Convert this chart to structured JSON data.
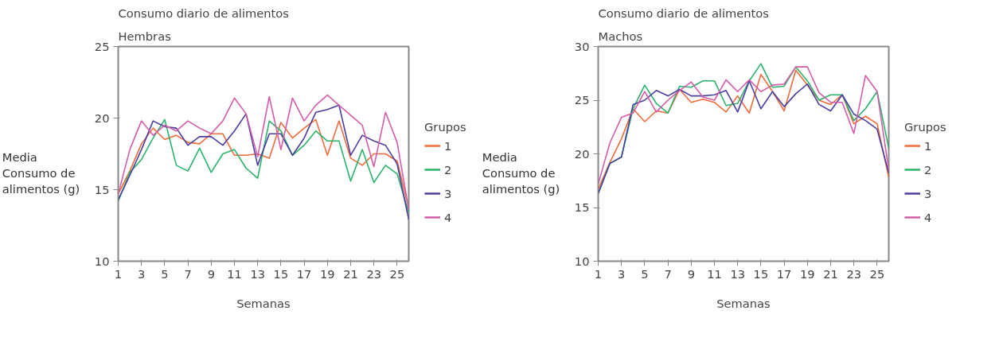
{
  "chart_data": [
    {
      "type": "line",
      "title": "Consumo diario de alimentos",
      "subtitle": "Hembras",
      "xlabel": "Semanas",
      "ylabel": "Media\nConsumo de\nalimentos (g)",
      "legend_title": "Grupos",
      "legend": "right",
      "grid": false,
      "line_style": "solid",
      "marker": "none",
      "x": [
        1,
        2,
        3,
        4,
        5,
        6,
        7,
        8,
        9,
        10,
        11,
        12,
        13,
        14,
        15,
        16,
        17,
        18,
        19,
        20,
        21,
        22,
        23,
        24,
        25,
        26
      ],
      "xlim": [
        1,
        26
      ],
      "xticks": [
        1,
        3,
        5,
        7,
        9,
        11,
        13,
        15,
        17,
        19,
        21,
        23,
        25
      ],
      "ylim": [
        10,
        25
      ],
      "yticks": [
        10,
        15,
        20,
        25
      ],
      "series": [
        {
          "name": "1",
          "color": "#f26b3a",
          "values": [
            14.7,
            16.3,
            18.2,
            19.3,
            18.5,
            18.8,
            18.3,
            18.2,
            18.9,
            18.9,
            17.4,
            17.4,
            17.5,
            17.2,
            19.7,
            18.6,
            19.3,
            19.9,
            17.4,
            19.8,
            17.2,
            16.7,
            17.5,
            17.5,
            17.0,
            13.7
          ]
        },
        {
          "name": "2",
          "color": "#2ab36b",
          "values": [
            14.2,
            16.2,
            17.1,
            18.6,
            19.9,
            16.7,
            16.3,
            17.9,
            16.2,
            17.5,
            17.8,
            16.5,
            15.8,
            19.8,
            19.1,
            17.4,
            18.1,
            19.1,
            18.4,
            18.4,
            15.6,
            17.8,
            15.5,
            16.7,
            16.1,
            13.4
          ]
        },
        {
          "name": "3",
          "color": "#4a3fa0",
          "values": [
            14.3,
            16.0,
            17.8,
            19.8,
            19.4,
            19.3,
            18.1,
            18.7,
            18.7,
            18.1,
            19.1,
            20.3,
            16.7,
            18.9,
            18.9,
            17.4,
            18.6,
            20.4,
            20.6,
            20.9,
            17.4,
            18.8,
            18.4,
            18.1,
            16.8,
            12.9
          ]
        },
        {
          "name": "4",
          "color": "#d45ca8",
          "values": [
            14.7,
            17.8,
            19.8,
            18.8,
            19.5,
            19.1,
            19.8,
            19.3,
            18.9,
            19.8,
            21.4,
            20.3,
            17.3,
            21.5,
            17.8,
            21.4,
            19.8,
            20.9,
            21.6,
            20.9,
            20.2,
            19.5,
            16.6,
            20.4,
            18.3,
            13.6
          ]
        }
      ]
    },
    {
      "type": "line",
      "title": "Consumo diario de alimentos",
      "subtitle": "Machos",
      "xlabel": "Semanas",
      "ylabel": "Media\nConsumo de\nalimentos (g)",
      "legend_title": "Grupos",
      "legend": "right",
      "grid": false,
      "line_style": "solid",
      "marker": "none",
      "x": [
        1,
        2,
        3,
        4,
        5,
        6,
        7,
        8,
        9,
        10,
        11,
        12,
        13,
        14,
        15,
        16,
        17,
        18,
        19,
        20,
        21,
        22,
        23,
        24,
        25,
        26
      ],
      "xlim": [
        1,
        26
      ],
      "xticks": [
        1,
        3,
        5,
        7,
        9,
        11,
        13,
        15,
        17,
        19,
        21,
        23,
        25
      ],
      "ylim": [
        10,
        30
      ],
      "yticks": [
        10,
        15,
        20,
        25,
        30
      ],
      "series": [
        {
          "name": "1",
          "color": "#f26b3a",
          "values": [
            16.7,
            19.2,
            21.4,
            24.2,
            23.0,
            24.0,
            23.8,
            26.0,
            24.8,
            25.1,
            24.8,
            23.9,
            25.4,
            23.8,
            27.4,
            25.8,
            24.0,
            27.8,
            26.4,
            25.0,
            24.6,
            25.5,
            22.8,
            23.5,
            22.8,
            17.8
          ]
        },
        {
          "name": "2",
          "color": "#2ab36b",
          "values": [
            16.3,
            19.1,
            19.7,
            24.2,
            26.4,
            24.7,
            23.8,
            26.3,
            26.2,
            26.8,
            26.8,
            24.5,
            24.7,
            26.8,
            28.4,
            26.2,
            26.3,
            28.1,
            26.8,
            25.0,
            25.5,
            25.5,
            23.1,
            24.2,
            25.8,
            20.5
          ]
        },
        {
          "name": "3",
          "color": "#4a3fa0",
          "values": [
            16.3,
            19.1,
            19.7,
            24.6,
            25.0,
            25.9,
            25.4,
            26.0,
            25.4,
            25.4,
            25.5,
            25.9,
            23.9,
            26.8,
            24.2,
            25.8,
            24.4,
            25.6,
            26.5,
            24.6,
            24.0,
            25.5,
            23.7,
            23.1,
            22.3,
            18.2
          ]
        },
        {
          "name": "4",
          "color": "#d45ca8",
          "values": [
            17.2,
            21.0,
            23.4,
            23.8,
            25.8,
            23.9,
            25.0,
            25.9,
            26.7,
            25.3,
            25.0,
            26.9,
            25.8,
            26.9,
            25.8,
            26.4,
            26.5,
            28.1,
            28.1,
            25.7,
            24.8,
            24.8,
            21.9,
            27.3,
            25.8,
            18.5
          ]
        }
      ]
    }
  ]
}
